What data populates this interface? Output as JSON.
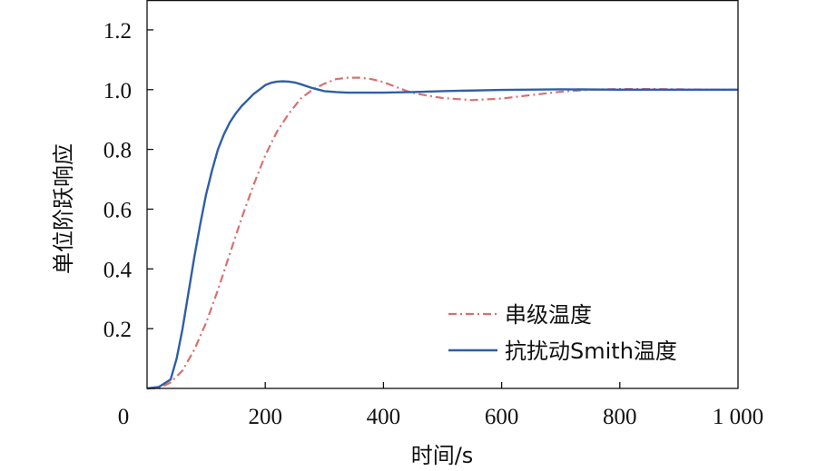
{
  "chart_data": {
    "type": "line",
    "xlabel": "时间/s",
    "ylabel": "单位阶跃响应",
    "xlim": [
      0,
      1000
    ],
    "ylim": [
      0,
      1.3
    ],
    "x_ticks": [
      {
        "value": 0,
        "label": "0"
      },
      {
        "value": 200,
        "label": "200"
      },
      {
        "value": 400,
        "label": "400"
      },
      {
        "value": 600,
        "label": "600"
      },
      {
        "value": 800,
        "label": "800"
      },
      {
        "value": 1000,
        "label": "1 000"
      }
    ],
    "y_ticks": [
      {
        "value": 0.2,
        "label": "0.2"
      },
      {
        "value": 0.4,
        "label": "0.4"
      },
      {
        "value": 0.6,
        "label": "0.6"
      },
      {
        "value": 0.8,
        "label": "0.8"
      },
      {
        "value": 1.0,
        "label": "1.0"
      },
      {
        "value": 1.2,
        "label": "1.2"
      }
    ],
    "grid": false,
    "legend_position": "bottom-right",
    "series": [
      {
        "name": "串级温度",
        "color": "#d9706e",
        "style": "dash-dot",
        "x": [
          0,
          20,
          40,
          60,
          80,
          100,
          120,
          140,
          160,
          180,
          200,
          220,
          240,
          260,
          280,
          300,
          320,
          340,
          360,
          380,
          400,
          420,
          440,
          460,
          480,
          500,
          550,
          600,
          650,
          700,
          750,
          800,
          850,
          900,
          950,
          1000
        ],
        "y": [
          0,
          0.0,
          0.02,
          0.06,
          0.13,
          0.22,
          0.33,
          0.45,
          0.57,
          0.68,
          0.78,
          0.86,
          0.92,
          0.97,
          1.0,
          1.02,
          1.035,
          1.04,
          1.04,
          1.035,
          1.025,
          1.01,
          0.995,
          0.985,
          0.978,
          0.972,
          0.965,
          0.97,
          0.982,
          0.993,
          1.0,
          1.002,
          1.002,
          1.001,
          1.0,
          1.0
        ]
      },
      {
        "name": "抗扰动Smith温度",
        "color": "#2e5fa6",
        "style": "solid",
        "x": [
          0,
          20,
          40,
          50,
          60,
          70,
          80,
          90,
          100,
          110,
          120,
          130,
          140,
          150,
          160,
          170,
          180,
          190,
          200,
          210,
          220,
          230,
          240,
          250,
          260,
          280,
          300,
          320,
          340,
          360,
          400,
          450,
          500,
          600,
          700,
          800,
          900,
          1000
        ],
        "y": [
          0,
          0.005,
          0.03,
          0.1,
          0.2,
          0.32,
          0.44,
          0.55,
          0.65,
          0.73,
          0.8,
          0.85,
          0.89,
          0.92,
          0.945,
          0.965,
          0.985,
          1.0,
          1.015,
          1.023,
          1.027,
          1.028,
          1.027,
          1.024,
          1.018,
          1.005,
          0.995,
          0.992,
          0.99,
          0.99,
          0.99,
          0.992,
          0.995,
          0.999,
          1.001,
          1.0,
          1.0,
          1.0
        ]
      }
    ]
  }
}
